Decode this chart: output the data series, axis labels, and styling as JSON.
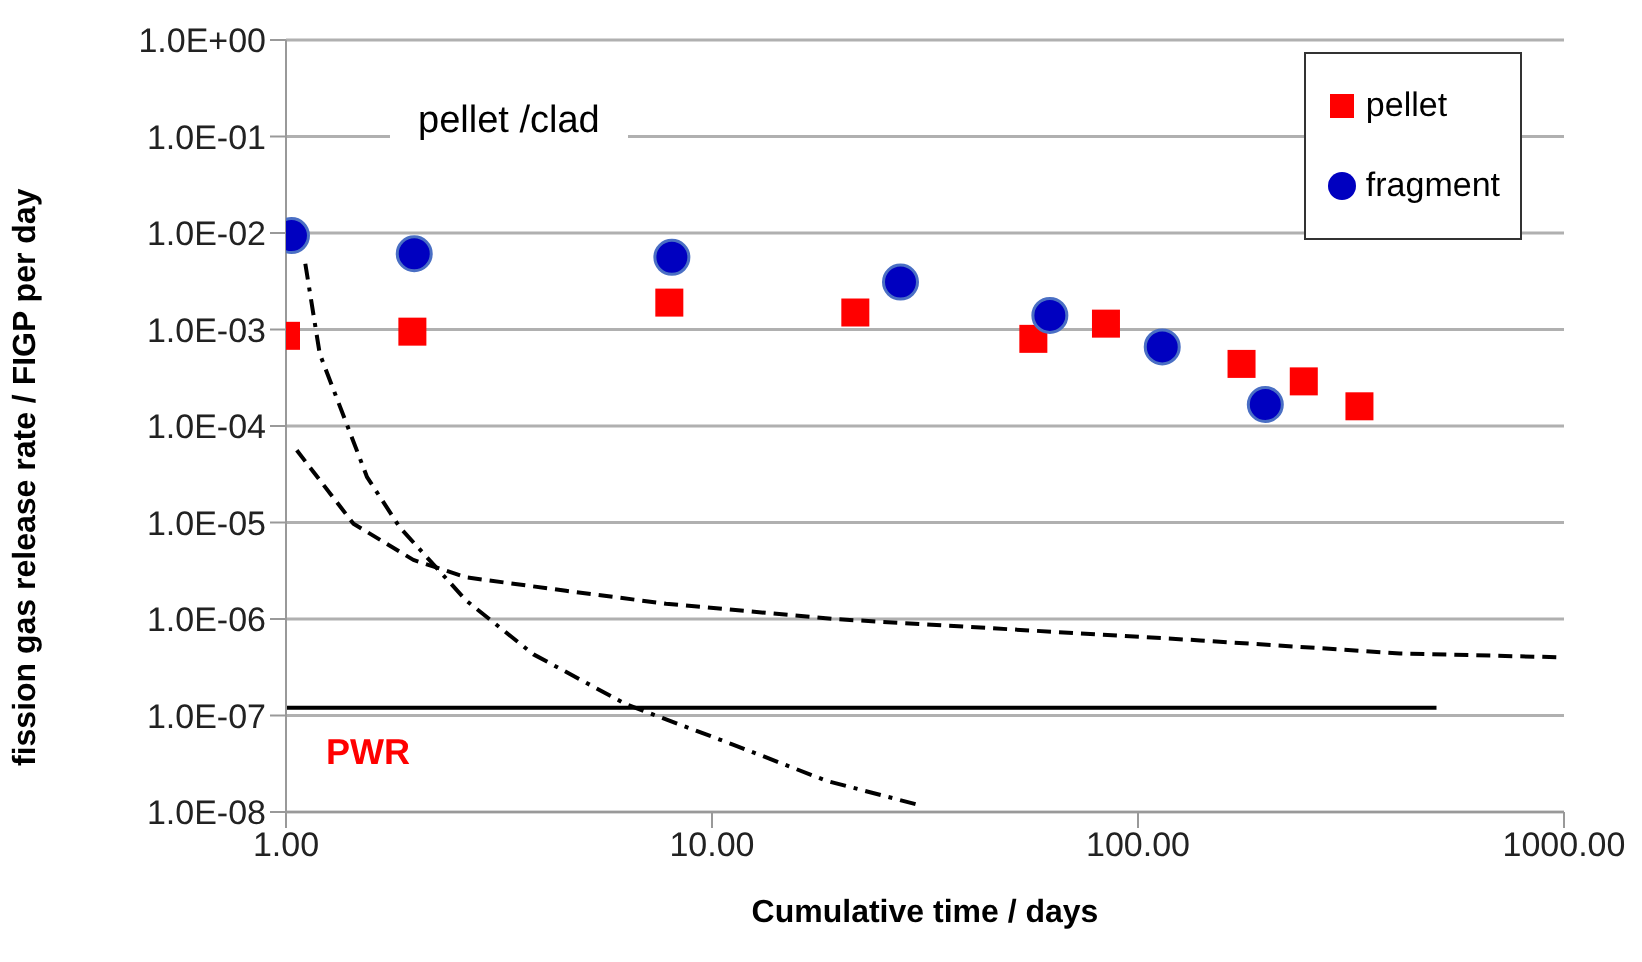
{
  "chart_data": {
    "type": "scatter",
    "xlabel": "Cumulative time / days",
    "ylabel": "fission gas release rate / FIGP per day",
    "log": "xy",
    "grid": "y",
    "legend": "top right",
    "xlim": [
      1,
      1000
    ],
    "xticks": [
      {
        "value": 1,
        "label": "1.00"
      },
      {
        "value": 10,
        "label": "10.00"
      },
      {
        "value": 100,
        "label": "100.00"
      },
      {
        "value": 1000,
        "label": "1000.00"
      }
    ],
    "ylim": [
      1e-08,
      1
    ],
    "yticks": [
      {
        "value": 1e-08,
        "label": "1.0E-08"
      },
      {
        "value": 1e-07,
        "label": "1.0E-07"
      },
      {
        "value": 1e-06,
        "label": "1.0E-06"
      },
      {
        "value": 1e-05,
        "label": "1.0E-05"
      },
      {
        "value": 0.0001,
        "label": "1.0E-04"
      },
      {
        "value": 0.001,
        "label": "1.0E-03"
      },
      {
        "value": 0.01,
        "label": "1.0E-02"
      },
      {
        "value": 0.1,
        "label": "1.0E-01"
      },
      {
        "value": 1,
        "label": "1.0E+00"
      }
    ],
    "series": [
      {
        "name": "pellet",
        "marker": "square",
        "color": "#ff0000",
        "x": [
          1.0,
          1.98,
          7.94,
          21.7,
          56.8,
          84.1,
          175,
          245,
          331
        ],
        "values": [
          0.00086,
          0.00095,
          0.0019,
          0.0015,
          0.0008,
          0.00115,
          0.00044,
          0.00029,
          0.00016
        ]
      },
      {
        "name": "fragment",
        "marker": "circle",
        "color": "#0000c0",
        "x": [
          1.03,
          2.0,
          8.05,
          27.7,
          62.1,
          114,
          199
        ],
        "values": [
          0.0094,
          0.0061,
          0.0056,
          0.0031,
          0.0014,
          0.00066,
          0.000167
        ]
      },
      {
        "type": "line",
        "marker": "none",
        "line_style": "dashed",
        "color": "#000000",
        "x": [
          1.06,
          1.44,
          1.99,
          2.65,
          4.54,
          7.8,
          19.3,
          140,
          412,
          1000
        ],
        "values": [
          5.6e-05,
          9.7e-06,
          4.1e-06,
          2.7e-06,
          1.96e-06,
          1.44e-06,
          1e-06,
          6e-07,
          4.4e-07,
          4e-07
        ]
      },
      {
        "type": "line",
        "marker": "none",
        "line_style": "dashdot",
        "color": "#000000",
        "x": [
          1.11,
          1.2,
          1.55,
          1.85,
          2.65,
          3.81,
          6.3,
          11.2,
          18.6,
          30.2
        ],
        "values": [
          0.0048,
          0.00056,
          2.95e-05,
          8.9e-06,
          1.55e-06,
          4.3e-07,
          1.3e-07,
          5e-08,
          2.1e-08,
          1.2e-08
        ]
      },
      {
        "type": "line",
        "marker": "none",
        "line_style": "solid",
        "color": "#000000",
        "x": [
          1,
          502
        ],
        "values": [
          1.2e-07,
          1.2e-07
        ]
      }
    ],
    "annotations": [
      "pellet /clad",
      "PWR"
    ]
  }
}
